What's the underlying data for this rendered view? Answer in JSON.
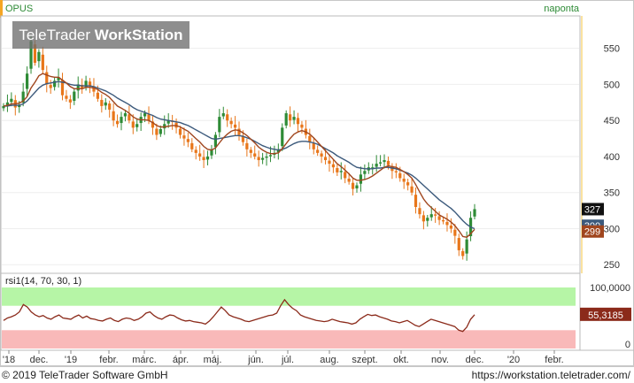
{
  "header": {
    "symbol": "OPUS",
    "period": "naponta"
  },
  "watermark": {
    "part1": "TeleTrader ",
    "part2": "WorkStation"
  },
  "footer": {
    "copyright": "© 2019 TeleTrader Software GmbH",
    "url": "https://workstation.teletrader.com/"
  },
  "colors": {
    "up": "#2e8b36",
    "down": "#e8761a",
    "ma_short": "#a0461e",
    "ma_long": "#3c5a7c",
    "rsi_line": "#8b2a1a",
    "rsi_overbought": "#b6f5a6",
    "rsi_oversold": "#f9b9b9",
    "accent_bar": "#f5a623"
  },
  "chart_data": [
    {
      "type": "line",
      "name": "price",
      "series_kind": "candlestick",
      "x_ticks": [
        "'18",
        "dec.",
        "'19",
        "febr.",
        "márc.",
        "ápr.",
        "máj.",
        "jún.",
        "júl.",
        "aug.",
        "szept.",
        "okt.",
        "nov.",
        "dec.",
        "'20",
        "febr."
      ],
      "y_ticks": [
        250,
        300,
        350,
        400,
        450,
        500,
        550
      ],
      "ylim": [
        238,
        595
      ],
      "last_labels": {
        "last_close": "327",
        "ma_a": "300",
        "ma_b": "299"
      },
      "close": [
        470,
        475,
        480,
        468,
        472,
        490,
        515,
        560,
        530,
        545,
        520,
        500,
        495,
        505,
        510,
        485,
        480,
        475,
        490,
        500,
        495,
        505,
        498,
        490,
        480,
        470,
        475,
        465,
        450,
        445,
        455,
        460,
        450,
        440,
        445,
        455,
        460,
        450,
        440,
        430,
        438,
        445,
        450,
        448,
        440,
        430,
        425,
        420,
        410,
        405,
        400,
        395,
        400,
        410,
        430,
        455,
        460,
        450,
        445,
        440,
        430,
        420,
        410,
        405,
        400,
        395,
        398,
        400,
        402,
        405,
        410,
        440,
        460,
        450,
        455,
        445,
        440,
        430,
        420,
        410,
        405,
        400,
        395,
        390,
        385,
        378,
        380,
        370,
        365,
        355,
        360,
        375,
        380,
        385,
        385,
        390,
        392,
        395,
        388,
        380,
        378,
        370,
        365,
        360,
        350,
        330,
        320,
        310,
        315,
        320,
        318,
        312,
        310,
        305,
        300,
        290,
        270,
        262,
        285,
        315,
        327
      ],
      "ma_short": [
        470,
        471,
        473,
        473,
        474,
        477,
        483,
        495,
        503,
        512,
        515,
        513,
        511,
        510,
        510,
        506,
        502,
        497,
        494,
        494,
        494,
        496,
        496,
        495,
        493,
        489,
        486,
        482,
        476,
        470,
        467,
        464,
        460,
        455,
        452,
        451,
        451,
        450,
        447,
        443,
        441,
        441,
        442,
        443,
        443,
        441,
        438,
        435,
        430,
        425,
        420,
        414,
        410,
        409,
        412,
        419,
        426,
        431,
        435,
        437,
        436,
        433,
        429,
        424,
        419,
        413,
        409,
        406,
        404,
        404,
        405,
        411,
        418,
        425,
        431,
        434,
        436,
        434,
        431,
        426,
        420,
        414,
        408,
        402,
        396,
        390,
        386,
        381,
        376,
        370,
        367,
        367,
        368,
        370,
        373,
        377,
        381,
        385,
        387,
        386,
        385,
        382,
        379,
        375,
        370,
        361,
        351,
        341,
        334,
        329,
        324,
        319,
        316,
        313,
        309,
        304,
        297,
        289,
        288,
        293,
        299
      ],
      "ma_long": [
        470,
        470,
        471,
        471,
        471,
        473,
        477,
        483,
        489,
        495,
        499,
        501,
        502,
        503,
        504,
        503,
        502,
        500,
        499,
        499,
        498,
        498,
        498,
        497,
        495,
        493,
        491,
        488,
        485,
        481,
        478,
        475,
        472,
        468,
        465,
        463,
        461,
        459,
        457,
        454,
        452,
        451,
        450,
        449,
        448,
        447,
        445,
        443,
        440,
        437,
        434,
        431,
        428,
        425,
        424,
        425,
        426,
        427,
        428,
        429,
        429,
        428,
        426,
        424,
        421,
        418,
        415,
        413,
        411,
        410,
        409,
        410,
        412,
        415,
        418,
        420,
        421,
        421,
        420,
        419,
        417,
        414,
        411,
        408,
        405,
        401,
        398,
        395,
        392,
        388,
        385,
        384,
        383,
        383,
        383,
        384,
        384,
        385,
        385,
        384,
        383,
        381,
        379,
        377,
        374,
        370,
        365,
        360,
        355,
        350,
        345,
        340,
        336,
        332,
        328,
        323,
        317,
        311,
        306,
        302,
        300
      ]
    },
    {
      "type": "line",
      "name": "rsi1(14, 70, 30, 1)",
      "title": "rsi1(14, 70, 30, 1)",
      "y_ticks": [
        "100,0000",
        "0"
      ],
      "ylim": [
        0,
        100
      ],
      "last_label": "55,3185",
      "bands": {
        "overbought": 70,
        "oversold": 30
      },
      "values": [
        46,
        50,
        52,
        55,
        60,
        72,
        68,
        60,
        55,
        52,
        54,
        50,
        48,
        52,
        55,
        50,
        49,
        48,
        52,
        55,
        50,
        53,
        49,
        48,
        46,
        45,
        48,
        50,
        46,
        44,
        48,
        50,
        49,
        46,
        48,
        52,
        58,
        60,
        54,
        50,
        48,
        52,
        55,
        54,
        50,
        47,
        45,
        46,
        44,
        43,
        42,
        40,
        45,
        52,
        60,
        68,
        62,
        55,
        52,
        50,
        48,
        45,
        44,
        46,
        48,
        50,
        52,
        54,
        55,
        58,
        70,
        80,
        72,
        66,
        62,
        55,
        52,
        50,
        48,
        46,
        45,
        44,
        45,
        48,
        46,
        44,
        43,
        42,
        40,
        42,
        48,
        52,
        56,
        54,
        55,
        52,
        50,
        48,
        45,
        44,
        42,
        44,
        46,
        42,
        38,
        36,
        40,
        44,
        48,
        46,
        44,
        42,
        40,
        38,
        36,
        30,
        28,
        35,
        48,
        55.3185
      ]
    }
  ]
}
